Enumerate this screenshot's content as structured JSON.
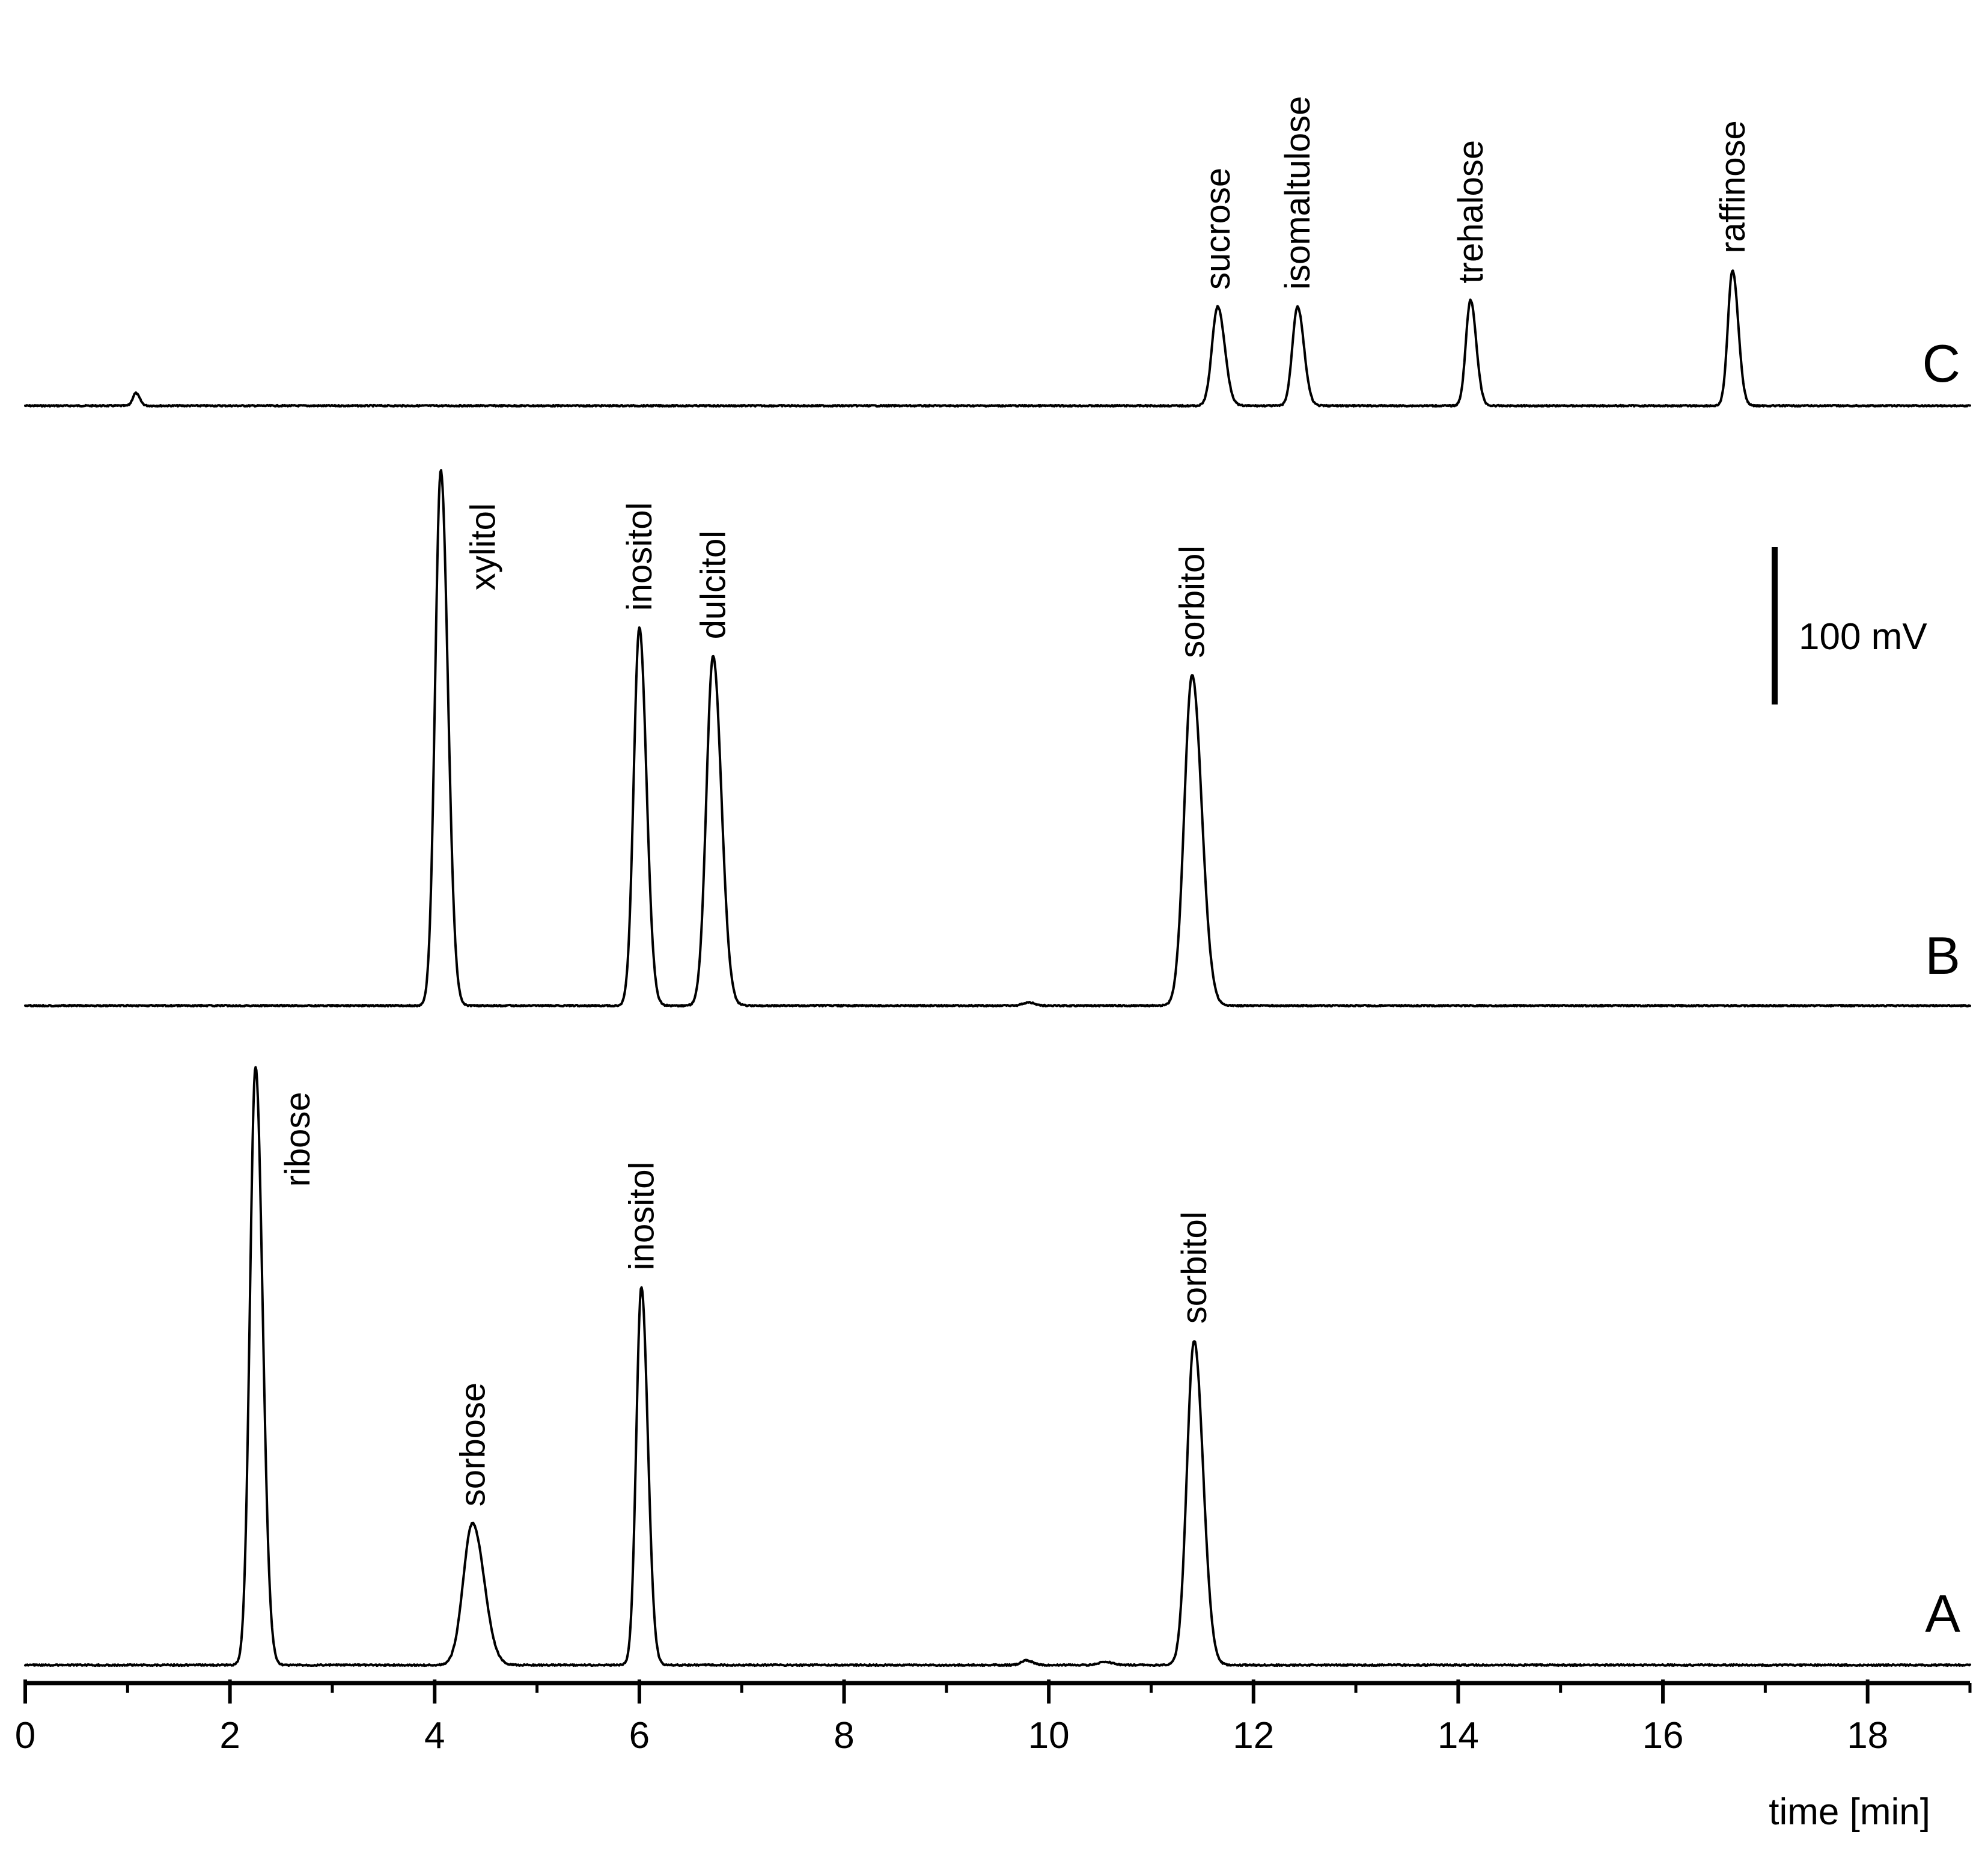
{
  "chart_data": {
    "type": "line",
    "xlabel": "time [min]",
    "xlim": [
      0,
      19
    ],
    "xticks": [
      0,
      2,
      4,
      6,
      8,
      10,
      12,
      14,
      16,
      18
    ],
    "x_minor_tick_step": 1,
    "grid": false,
    "line_color": "#000000",
    "scale_bar": {
      "value": 100,
      "label": "100 mV"
    },
    "traces": [
      {
        "name": "C",
        "baseline_mV": 0,
        "peaks": [
          {
            "label": "",
            "time": 1.08,
            "height_mV": 8,
            "width": 0.03
          },
          {
            "label": "sucrose",
            "time": 11.65,
            "height_mV": 63,
            "width": 0.055
          },
          {
            "label": "isomaltulose",
            "time": 12.43,
            "height_mV": 63,
            "width": 0.05
          },
          {
            "label": "trehalose",
            "time": 14.12,
            "height_mV": 67,
            "width": 0.045
          },
          {
            "label": "raffinose",
            "time": 16.68,
            "height_mV": 86,
            "width": 0.045
          }
        ]
      },
      {
        "name": "B",
        "baseline_mV": 0,
        "peaks": [
          {
            "label": "xylitol",
            "time": 4.06,
            "height_mV": 340,
            "width": 0.055
          },
          {
            "label": "inositol",
            "time": 6.0,
            "height_mV": 240,
            "width": 0.055
          },
          {
            "label": "dulcitol",
            "time": 6.72,
            "height_mV": 222,
            "width": 0.065
          },
          {
            "label": "",
            "time": 9.8,
            "height_mV": 2,
            "width": 0.05
          },
          {
            "label": "sorbitol",
            "time": 11.4,
            "height_mV": 210,
            "width": 0.075
          }
        ]
      },
      {
        "name": "A",
        "baseline_mV": 0,
        "peaks": [
          {
            "label": "ribose",
            "time": 2.25,
            "height_mV": 380,
            "width": 0.055
          },
          {
            "label": "sorbose",
            "time": 4.37,
            "height_mV": 90,
            "width": 0.09
          },
          {
            "label": "inositol",
            "time": 6.02,
            "height_mV": 240,
            "width": 0.05
          },
          {
            "label": "",
            "time": 9.78,
            "height_mV": 3,
            "width": 0.05
          },
          {
            "label": "",
            "time": 10.55,
            "height_mV": 2,
            "width": 0.06
          },
          {
            "label": "sorbitol",
            "time": 11.42,
            "height_mV": 206,
            "width": 0.07
          }
        ]
      }
    ]
  }
}
